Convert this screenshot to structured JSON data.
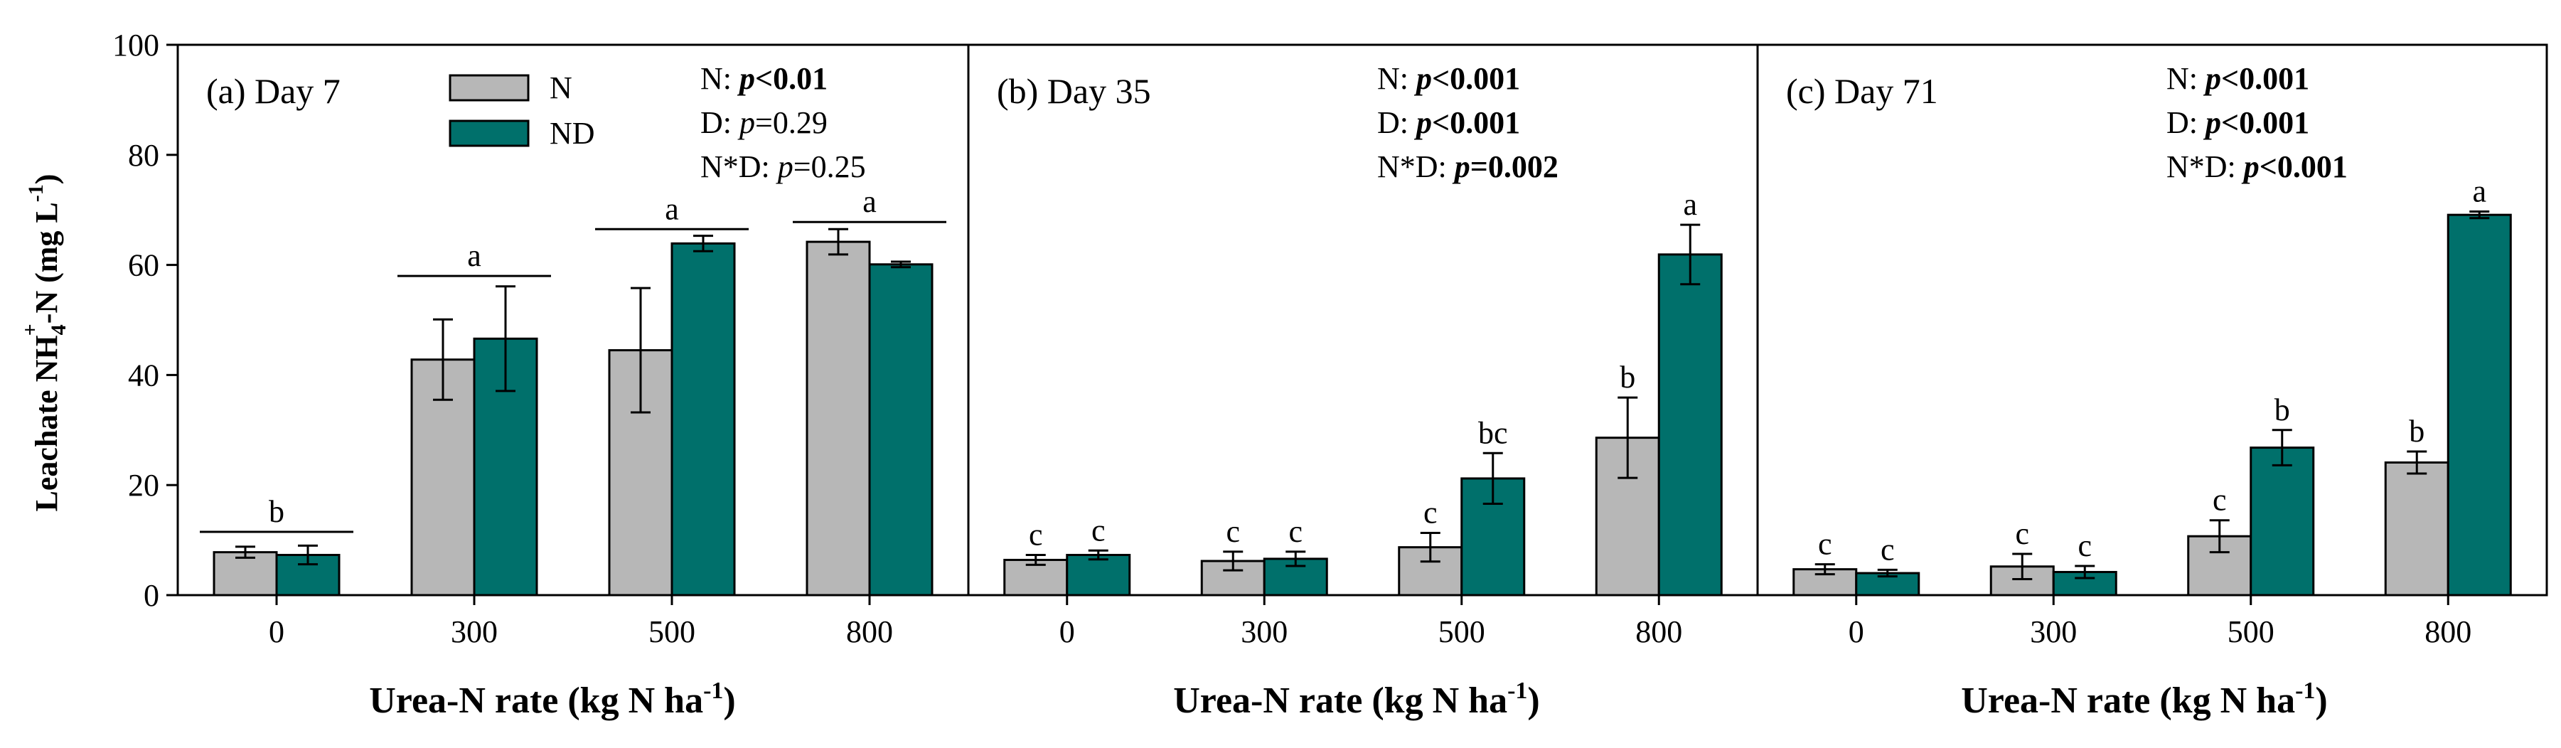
{
  "colors": {
    "N": "#b7b7b7",
    "ND": "#00706b",
    "axis": "#000000"
  },
  "y_axis": {
    "label_prefix": "Leachate NH",
    "label_sub": "4",
    "label_sup": "+",
    "label_middle": "-N (mg L",
    "label_sup2": "-1",
    "label_suffix": ")"
  },
  "x_axis": {
    "label_prefix": "Urea-N rate (kg N ha",
    "label_sup": "-1",
    "label_suffix": ")"
  },
  "legend": {
    "items": [
      {
        "name": "N",
        "color": "#b7b7b7"
      },
      {
        "name": "ND",
        "color": "#00706b"
      }
    ]
  },
  "chart_data": [
    {
      "type": "bar",
      "title": "(a) Day 7",
      "categories": [
        "0",
        "300",
        "500",
        "800"
      ],
      "ylim": [
        0,
        100
      ],
      "yticks": [
        0,
        20,
        40,
        60,
        80,
        100
      ],
      "series": [
        {
          "name": "N",
          "values": [
            7.8,
            42.8,
            44.5,
            64.2
          ],
          "errors": [
            1.0,
            7.3,
            11.3,
            2.3
          ]
        },
        {
          "name": "ND",
          "values": [
            7.3,
            46.6,
            63.9,
            60.1
          ],
          "errors": [
            1.7,
            9.5,
            1.4,
            0.5
          ]
        }
      ],
      "group_letters": [
        {
          "categories": [
            0
          ],
          "letter": "b",
          "y": 11.5
        },
        {
          "categories": [
            1
          ],
          "letter": "a",
          "y": 58.0
        },
        {
          "categories": [
            2
          ],
          "letter": "a",
          "y": 66.5
        },
        {
          "categories": [
            3
          ],
          "letter": "a",
          "y": 67.8
        }
      ],
      "stats": [
        {
          "label": "N: ",
          "p": "p",
          "rest": "<0.01",
          "bold": true
        },
        {
          "label": "D: ",
          "p": "p",
          "rest": "=0.29",
          "bold": false
        },
        {
          "label": "N*D: ",
          "p": "p",
          "rest": "=0.25",
          "bold": false
        }
      ]
    },
    {
      "type": "bar",
      "title": "(b) Day 35",
      "categories": [
        "0",
        "300",
        "500",
        "800"
      ],
      "ylim": [
        0,
        100
      ],
      "series": [
        {
          "name": "N",
          "values": [
            6.4,
            6.2,
            8.7,
            28.6
          ],
          "errors": [
            0.9,
            1.7,
            2.6,
            7.3
          ],
          "letters": [
            "c",
            "c",
            "c",
            "b"
          ]
        },
        {
          "name": "ND",
          "values": [
            7.3,
            6.6,
            21.2,
            61.9
          ],
          "errors": [
            0.8,
            1.3,
            4.6,
            5.4
          ],
          "letters": [
            "c",
            "c",
            "bc",
            "a"
          ]
        }
      ],
      "stats": [
        {
          "label": "N: ",
          "p": "p",
          "rest": "<0.001",
          "bold": true
        },
        {
          "label": "D: ",
          "p": "p",
          "rest": "<0.001",
          "bold": true
        },
        {
          "label": "N*D: ",
          "p": "p",
          "rest": "=0.002",
          "bold": true
        }
      ]
    },
    {
      "type": "bar",
      "title": "(c) Day 71",
      "categories": [
        "0",
        "300",
        "500",
        "800"
      ],
      "ylim": [
        0,
        100
      ],
      "series": [
        {
          "name": "N",
          "values": [
            4.7,
            5.2,
            10.7,
            24.1
          ],
          "errors": [
            0.9,
            2.3,
            2.9,
            2.0
          ],
          "letters": [
            "c",
            "c",
            "c",
            "b"
          ]
        },
        {
          "name": "ND",
          "values": [
            4.0,
            4.2,
            26.8,
            69.1
          ],
          "errors": [
            0.6,
            1.1,
            3.2,
            0.6
          ],
          "letters": [
            "c",
            "c",
            "b",
            "a"
          ]
        }
      ],
      "stats": [
        {
          "label": "N: ",
          "p": "p",
          "rest": "<0.001",
          "bold": true
        },
        {
          "label": "D: ",
          "p": "p",
          "rest": "<0.001",
          "bold": true
        },
        {
          "label": "N*D: ",
          "p": "p",
          "rest": "<0.001",
          "bold": true
        }
      ]
    }
  ]
}
